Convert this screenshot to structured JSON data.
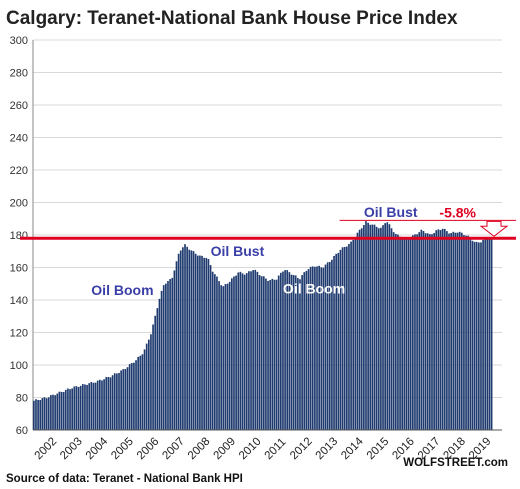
{
  "chart_data": {
    "type": "bar",
    "title": "Calgary: Teranet-National Bank House Price Index",
    "ylim": [
      60,
      300
    ],
    "yticks": [
      60,
      80,
      100,
      120,
      140,
      160,
      180,
      200,
      220,
      240,
      260,
      280,
      300
    ],
    "xticks": [
      "2002",
      "2003",
      "2004",
      "2005",
      "2006",
      "2007",
      "2008",
      "2009",
      "2010",
      "2011",
      "2012",
      "2013",
      "2014",
      "2015",
      "2016",
      "2017",
      "2018",
      "2019"
    ],
    "grid": true,
    "start_year": 2002,
    "anchors": [
      [
        2002.0,
        78
      ],
      [
        2002.5,
        80
      ],
      [
        2003.0,
        83
      ],
      [
        2003.5,
        86
      ],
      [
        2004.0,
        88
      ],
      [
        2004.5,
        90
      ],
      [
        2005.0,
        93
      ],
      [
        2005.5,
        97
      ],
      [
        2006.0,
        103
      ],
      [
        2006.3,
        108
      ],
      [
        2006.6,
        120
      ],
      [
        2006.9,
        140
      ],
      [
        2007.1,
        150
      ],
      [
        2007.4,
        153
      ],
      [
        2007.7,
        170
      ],
      [
        2007.9,
        174
      ],
      [
        2008.2,
        170
      ],
      [
        2008.5,
        167
      ],
      [
        2008.8,
        166
      ],
      [
        2009.0,
        158
      ],
      [
        2009.4,
        148
      ],
      [
        2009.7,
        152
      ],
      [
        2010.0,
        157
      ],
      [
        2010.3,
        156
      ],
      [
        2010.6,
        159
      ],
      [
        2010.9,
        155
      ],
      [
        2011.2,
        152
      ],
      [
        2011.5,
        153
      ],
      [
        2011.8,
        159
      ],
      [
        2012.1,
        156
      ],
      [
        2012.4,
        153
      ],
      [
        2012.7,
        159
      ],
      [
        2013.0,
        161
      ],
      [
        2013.3,
        160
      ],
      [
        2013.6,
        164
      ],
      [
        2014.0,
        171
      ],
      [
        2014.4,
        175
      ],
      [
        2014.8,
        184
      ],
      [
        2015.0,
        188
      ],
      [
        2015.3,
        186
      ],
      [
        2015.6,
        184
      ],
      [
        2015.8,
        189
      ],
      [
        2016.0,
        184
      ],
      [
        2016.2,
        180
      ],
      [
        2016.5,
        178
      ],
      [
        2016.8,
        179
      ],
      [
        2017.0,
        181
      ],
      [
        2017.2,
        183
      ],
      [
        2017.5,
        180
      ],
      [
        2017.8,
        183
      ],
      [
        2018.0,
        184
      ],
      [
        2018.3,
        181
      ],
      [
        2018.6,
        182
      ],
      [
        2018.9,
        180
      ],
      [
        2019.1,
        178
      ],
      [
        2019.3,
        175
      ],
      [
        2019.5,
        176
      ],
      [
        2019.75,
        178
      ],
      [
        2019.95,
        178
      ]
    ],
    "reference_line": 178,
    "annotations": [
      {
        "text": "Oil Boom",
        "x": 2005.5,
        "y": 143,
        "color": "#3a3fa8"
      },
      {
        "text": "Oil Bust",
        "x": 2010.0,
        "y": 167,
        "color": "#3a3fa8"
      },
      {
        "text": "Oil Boom",
        "x": 2013.0,
        "y": 144,
        "color": "#ffffff"
      },
      {
        "text": "Oil Bust",
        "x": 2016.0,
        "y": 191,
        "color": "#3a3fa8"
      }
    ],
    "change_label": "-5.8%",
    "peak_line": 189
  },
  "colors": {
    "bar": "#1e3a6e",
    "red": "#e00020",
    "grid": "#d9d9d9",
    "annotation": "#3a3fa8"
  },
  "footer": {
    "source": "Source of data: Teranet - National Bank HPI",
    "brand": "WOLFSTREET.com"
  }
}
